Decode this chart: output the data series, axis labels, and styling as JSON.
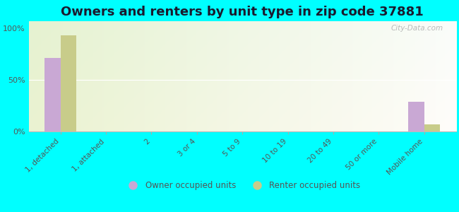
{
  "title": "Owners and renters by unit type in zip code 37881",
  "categories": [
    "1, detached",
    "1, attached",
    "2",
    "3 or 4",
    "5 to 9",
    "10 to 19",
    "20 to 49",
    "50 or more",
    "Mobile home"
  ],
  "owner_values": [
    71,
    0,
    0,
    0,
    0,
    0,
    0,
    0,
    29
  ],
  "renter_values": [
    93,
    0,
    0,
    0,
    0,
    0,
    0,
    0,
    7
  ],
  "owner_color": "#c9a8d4",
  "renter_color": "#c8cc8a",
  "background_color": "#00ffff",
  "yticks": [
    0,
    50,
    100
  ],
  "ylim": [
    0,
    107
  ],
  "watermark": "City-Data.com",
  "legend_owner": "Owner occupied units",
  "legend_renter": "Renter occupied units",
  "title_fontsize": 13,
  "bar_width": 0.35
}
